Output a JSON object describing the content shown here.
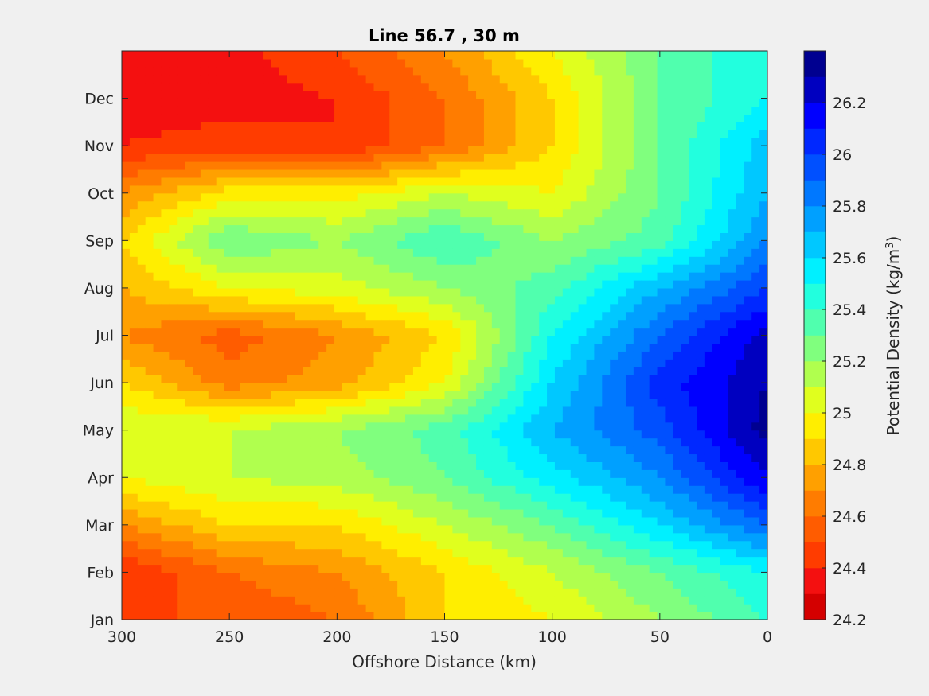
{
  "chart_data": {
    "type": "heatmap",
    "subtype": "filled-contour",
    "title": "Line 56.7 , 30 m",
    "xlabel": "Offshore Distance (km)",
    "x_ticks": [
      "300",
      "250",
      "200",
      "150",
      "100",
      "50",
      "0"
    ],
    "x_range": [
      300,
      0
    ],
    "y_ticks": [
      "Jan",
      "Feb",
      "Mar",
      "Apr",
      "May",
      "Jun",
      "Jul",
      "Aug",
      "Sep",
      "Oct",
      "Nov",
      "Dec"
    ],
    "y_range": [
      1,
      13
    ],
    "colorbar": {
      "label_main": "Potential Density (kg/m",
      "label_sup": "3",
      "label_end": ")",
      "ticks": [
        "24.2",
        "24.4",
        "24.6",
        "24.8",
        "25",
        "25.2",
        "25.4",
        "25.6",
        "25.8",
        "26",
        "26.2"
      ],
      "range": [
        24.2,
        26.4
      ],
      "levels": [
        24.2,
        24.3,
        24.4,
        24.5,
        24.6,
        24.7,
        24.8,
        24.9,
        25.0,
        25.1,
        25.2,
        25.3,
        25.4,
        25.5,
        25.6,
        25.7,
        25.8,
        25.9,
        26.0,
        26.1,
        26.2,
        26.3,
        26.4
      ]
    },
    "colors": [
      "#d40000",
      "#f41010",
      "#ff3c00",
      "#ff5c00",
      "#ff7c00",
      "#ffa000",
      "#ffc800",
      "#ffee00",
      "#e0ff1e",
      "#b0ff4e",
      "#80ff7e",
      "#50ffae",
      "#22ffde",
      "#00f0ff",
      "#00c8ff",
      "#00a0ff",
      "#0078ff",
      "#0050ff",
      "#0028ff",
      "#0000ff",
      "#0000c0",
      "#000090"
    ],
    "grid": [
      [
        300,
        24.5,
        24.4,
        24.7,
        25.0,
        25.1,
        24.9,
        24.7,
        24.8,
        24.9,
        24.7,
        24.4,
        24.35,
        24.3
      ],
      [
        250,
        24.5,
        24.6,
        24.9,
        25.1,
        25.1,
        24.65,
        24.55,
        25.0,
        25.3,
        24.95,
        24.45,
        24.35,
        24.35
      ],
      [
        200,
        24.6,
        24.7,
        24.9,
        25.15,
        25.2,
        24.75,
        24.7,
        25.05,
        25.2,
        24.95,
        24.4,
        24.4,
        24.5
      ],
      [
        150,
        24.9,
        24.9,
        25.1,
        25.3,
        25.35,
        25.0,
        24.9,
        25.2,
        25.4,
        25.1,
        24.6,
        24.6,
        24.7
      ],
      [
        100,
        25.0,
        25.1,
        25.3,
        25.55,
        25.7,
        25.6,
        25.5,
        25.35,
        25.2,
        25.0,
        24.9,
        24.9,
        25.0
      ],
      [
        50,
        25.2,
        25.3,
        25.6,
        25.8,
        25.95,
        26.05,
        25.9,
        25.7,
        25.35,
        25.3,
        25.3,
        25.3,
        25.3
      ],
      [
        0,
        25.4,
        25.5,
        25.9,
        26.2,
        26.35,
        26.3,
        26.25,
        26.0,
        25.8,
        25.7,
        25.65,
        25.5,
        25.5
      ]
    ]
  }
}
